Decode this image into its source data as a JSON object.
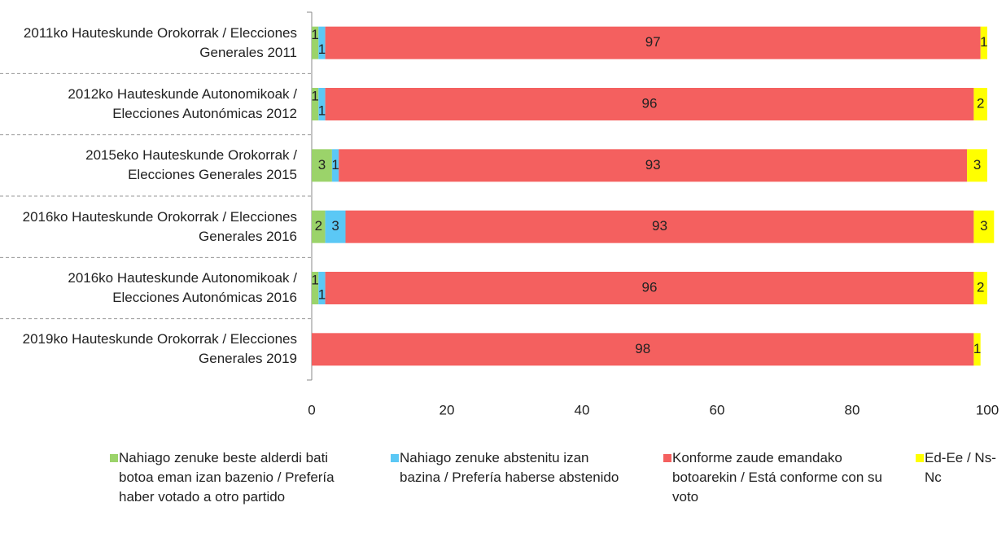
{
  "chart_data": {
    "type": "stacked_barh",
    "categories": [
      "2011ko Hauteskunde Orokorrak / Elecciones Generales 2011",
      "2012ko Hauteskunde Autonomikoak / Elecciones Autonómicas 2012",
      "2015eko Hauteskunde Orokorrak / Elecciones Generales 2015",
      "2016ko Hauteskunde Orokorrak / Elecciones Generales 2016",
      "2016ko Hauteskunde Autonomikoak / Elecciones Autonómicas 2016",
      "2019ko Hauteskunde Orokorrak / Elecciones Generales 2019"
    ],
    "series": [
      {
        "name": "Nahiago zenuke beste alderdi bati botoa eman izan bazenio / Prefería haber votado a otro partido",
        "color": "#9bd36a",
        "values": [
          1,
          1,
          3,
          2,
          1,
          null
        ]
      },
      {
        "name": "Nahiago zenuke abstenitu izan bazina / Prefería haberse abstenido",
        "color": "#5bc8f5",
        "values": [
          1,
          1,
          1,
          3,
          1,
          null
        ]
      },
      {
        "name": "Konforme zaude emandako botoarekin / Está conforme con su voto",
        "color": "#f4605f",
        "values": [
          97,
          96,
          93,
          93,
          96,
          98
        ]
      },
      {
        "name": "Ed-Ee / Ns-Nc",
        "color": "#ffff00",
        "values": [
          1,
          2,
          3,
          3,
          2,
          1
        ]
      }
    ],
    "xlim": [
      0,
      100
    ],
    "xticks": [
      0,
      20,
      40,
      60,
      80,
      100
    ],
    "legend": "bottom"
  }
}
